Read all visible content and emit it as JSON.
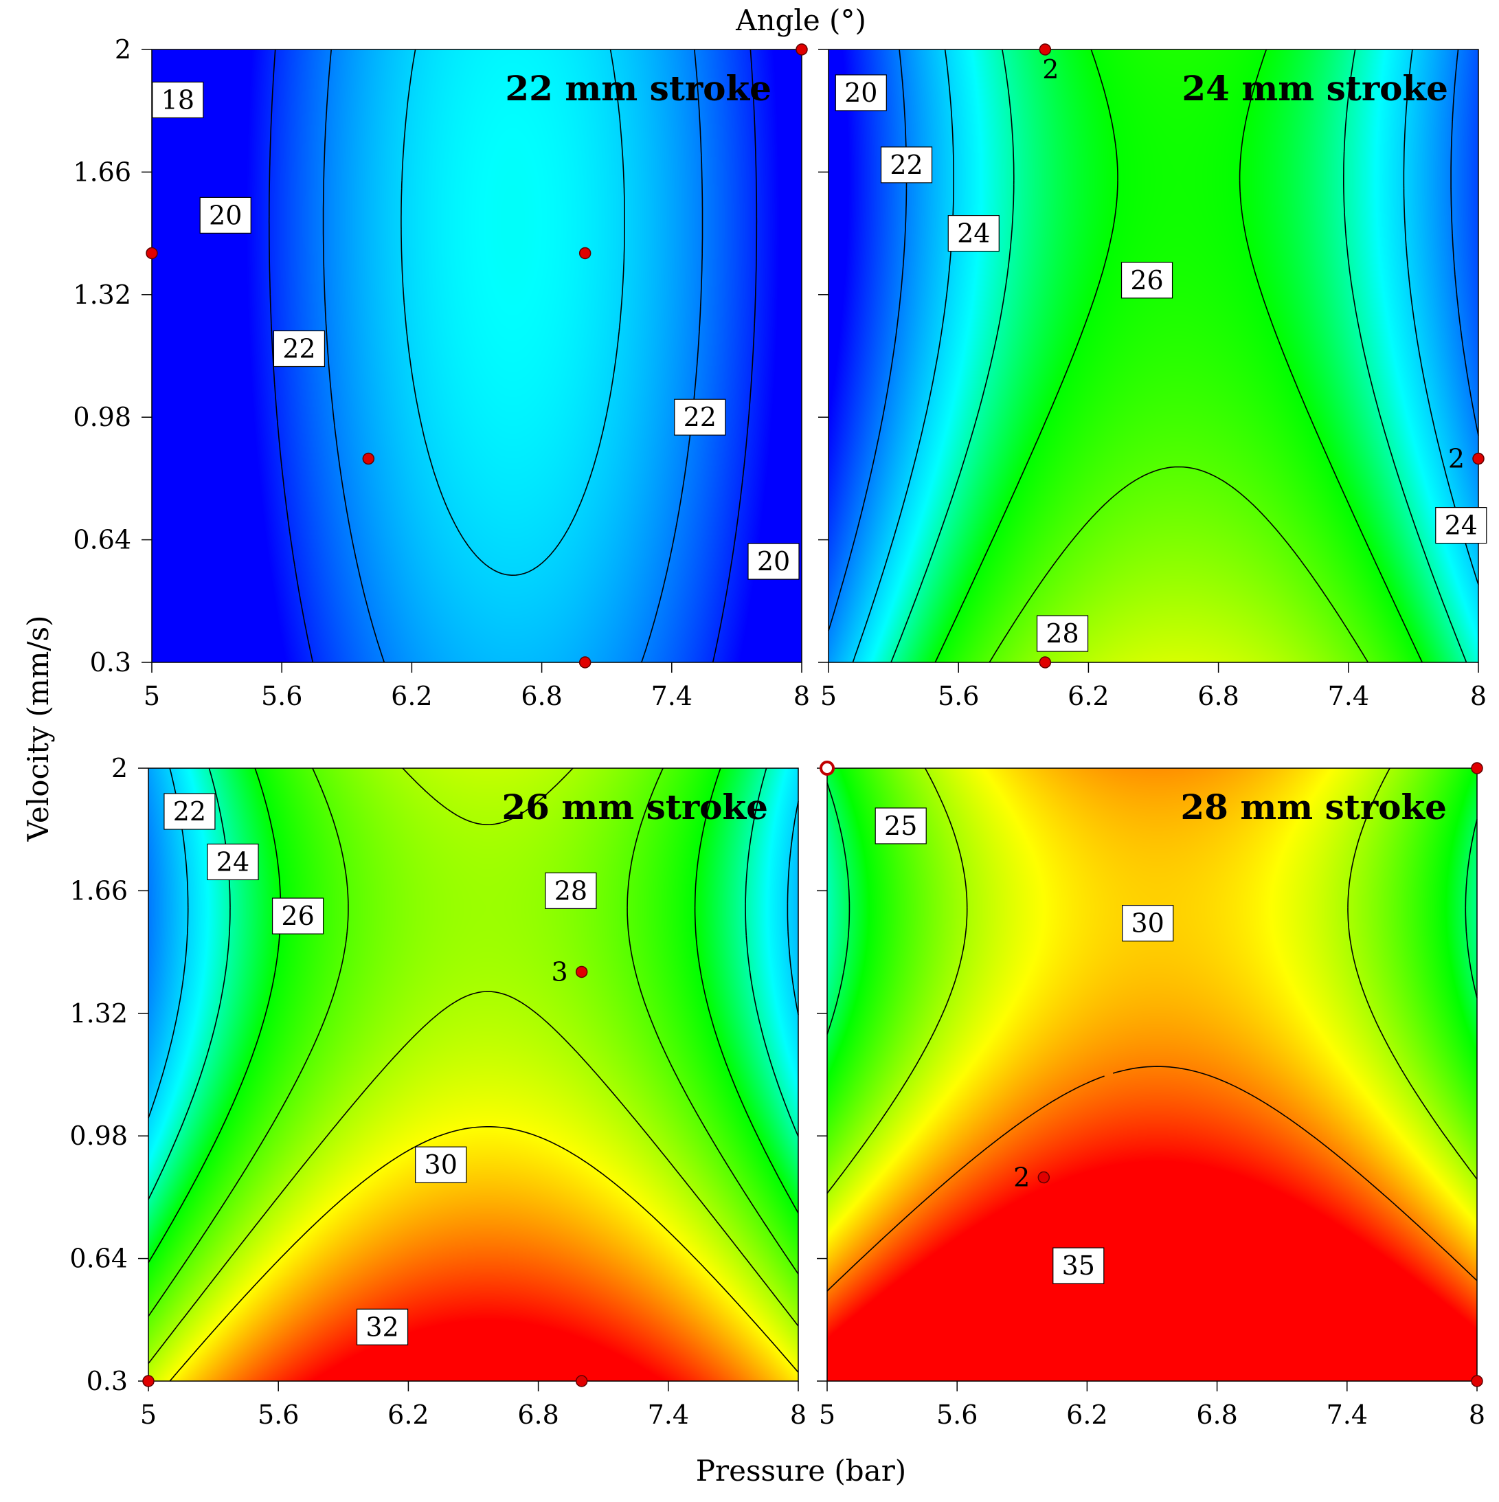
{
  "figure": {
    "top_title": "Angle (°)",
    "x_axis_title": "Pressure (bar)",
    "y_axis_title": "Velocity (mm/s)"
  },
  "chart_data": [
    {
      "type": "heatmap",
      "title": "22 mm stroke",
      "xlabel": "Pressure (bar)",
      "ylabel": "Velocity (mm/s)",
      "xlim": [
        5,
        8
      ],
      "ylim": [
        0.3,
        2
      ],
      "xticks": [
        "5",
        "5.6",
        "6.2",
        "6.8",
        "7.4",
        "8"
      ],
      "yticks": [
        "0.3",
        "0.64",
        "0.98",
        "1.32",
        "1.66",
        "2"
      ],
      "color_stops": [
        {
          "value": 17,
          "color": "#0000ff"
        },
        {
          "value": 23,
          "color": "#00ffff"
        },
        {
          "value": 26,
          "color": "#00ff00"
        },
        {
          "value": 32,
          "color": "#ffff00"
        },
        {
          "value": 38,
          "color": "#ff0000"
        }
      ],
      "coefficients": {
        "a": 22.8,
        "b": 2.0,
        "c": 0.7,
        "d": -9.0,
        "e": -0.8,
        "f": 0
      },
      "contours": [
        {
          "level": 18,
          "label": "18",
          "label_at": [
            5.12,
            1.86
          ]
        },
        {
          "level": 20,
          "label": "20",
          "label_at": [
            5.34,
            1.54
          ]
        },
        {
          "level": 22,
          "label": "22",
          "label_at": [
            5.68,
            1.17
          ]
        },
        {
          "level": 22,
          "label": "22",
          "label_at": [
            7.53,
            0.98
          ]
        },
        {
          "level": 20,
          "label": "20",
          "label_at": [
            7.87,
            0.58
          ]
        }
      ],
      "design_points": [
        {
          "x": 8,
          "y": 2,
          "label": ""
        },
        {
          "x": 5,
          "y": 1.435,
          "label": ""
        },
        {
          "x": 7,
          "y": 1.435,
          "label": ""
        },
        {
          "x": 6,
          "y": 0.865,
          "label": ""
        },
        {
          "x": 7,
          "y": 0.3,
          "label": ""
        }
      ]
    },
    {
      "type": "heatmap",
      "title": "24 mm stroke",
      "xlabel": "Pressure (bar)",
      "ylabel": "Velocity (mm/s)",
      "xlim": [
        5,
        8
      ],
      "ylim": [
        0.3,
        2
      ],
      "xticks": [
        "5",
        "5.6",
        "6.2",
        "6.8",
        "7.4",
        "8"
      ],
      "yticks": [
        "0.3",
        "0.64",
        "0.98",
        "1.32",
        "1.66",
        "2"
      ],
      "color_stops": [
        {
          "value": 17,
          "color": "#0000ff"
        },
        {
          "value": 23,
          "color": "#00ffff"
        },
        {
          "value": 26,
          "color": "#00ff00"
        },
        {
          "value": 32,
          "color": "#ffff00"
        },
        {
          "value": 38,
          "color": "#ff0000"
        }
      ],
      "coefficients": {
        "a": 26.9,
        "b": 1.4,
        "c": -2.2,
        "d": -9.0,
        "e": 1.9,
        "f": 0
      },
      "contours": [
        {
          "level": 20,
          "label": "20",
          "label_at": [
            5.15,
            1.88
          ]
        },
        {
          "level": 22,
          "label": "22",
          "label_at": [
            5.36,
            1.68
          ]
        },
        {
          "level": 24,
          "label": "24",
          "label_at": [
            5.67,
            1.49
          ]
        },
        {
          "level": 26,
          "label": "26",
          "label_at": [
            6.47,
            1.36
          ]
        },
        {
          "level": 28,
          "label": "28",
          "label_at": [
            6.08,
            0.38
          ]
        },
        {
          "level": 24,
          "label": "24",
          "label_at": [
            7.92,
            0.68
          ]
        }
      ],
      "design_points": [
        {
          "x": 6,
          "y": 2,
          "label": "2"
        },
        {
          "x": 8,
          "y": 0.865,
          "label": "2"
        },
        {
          "x": 6,
          "y": 0.3,
          "label": ""
        }
      ]
    },
    {
      "type": "heatmap",
      "title": "26 mm stroke",
      "xlabel": "Pressure (bar)",
      "ylabel": "Velocity (mm/s)",
      "xlim": [
        5,
        8
      ],
      "ylim": [
        0.3,
        2
      ],
      "xticks": [
        "5",
        "5.6",
        "6.2",
        "6.8",
        "7.4",
        "8"
      ],
      "yticks": [
        "0.3",
        "0.64",
        "0.98",
        "1.32",
        "1.66",
        "2"
      ],
      "color_stops": [
        {
          "value": 17,
          "color": "#0000ff"
        },
        {
          "value": 23,
          "color": "#00ffff"
        },
        {
          "value": 26,
          "color": "#00ff00"
        },
        {
          "value": 32,
          "color": "#ffff00"
        },
        {
          "value": 38,
          "color": "#ff0000"
        }
      ],
      "coefficients": {
        "a": 31.0,
        "b": 0.8,
        "c": -5.0,
        "d": -9.0,
        "e": 4.6,
        "f": 0
      },
      "contours": [
        {
          "level": 22,
          "label": "22",
          "label_at": [
            5.19,
            1.88
          ]
        },
        {
          "level": 24,
          "label": "24",
          "label_at": [
            5.39,
            1.74
          ]
        },
        {
          "level": 26,
          "label": "26",
          "label_at": [
            5.69,
            1.59
          ]
        },
        {
          "level": 28,
          "label": "28",
          "label_at": [
            6.95,
            1.66
          ]
        },
        {
          "level": 30,
          "label": "30",
          "label_at": [
            6.35,
            0.9
          ]
        },
        {
          "level": 32,
          "label": "32",
          "label_at": [
            6.08,
            0.45
          ]
        }
      ],
      "design_points": [
        {
          "x": 7,
          "y": 1.435,
          "label": "3"
        },
        {
          "x": 5,
          "y": 0.3,
          "label": ""
        },
        {
          "x": 7,
          "y": 0.3,
          "label": ""
        }
      ]
    },
    {
      "type": "heatmap",
      "title": "28 mm stroke",
      "xlabel": "Pressure (bar)",
      "ylabel": "Velocity (mm/s)",
      "xlim": [
        5,
        8
      ],
      "ylim": [
        0.3,
        2
      ],
      "xticks": [
        "5",
        "5.6",
        "6.2",
        "6.8",
        "7.4",
        "8"
      ],
      "yticks": [
        "0.3",
        "0.64",
        "0.98",
        "1.32",
        "1.66",
        "2"
      ],
      "color_stops": [
        {
          "value": 17,
          "color": "#0000ff"
        },
        {
          "value": 23,
          "color": "#00ffff"
        },
        {
          "value": 26,
          "color": "#00ff00"
        },
        {
          "value": 32,
          "color": "#ffff00"
        },
        {
          "value": 38,
          "color": "#ff0000"
        }
      ],
      "coefficients": {
        "a": 35.2,
        "b": 0.3,
        "c": -7.8,
        "d": -9.0,
        "e": 7.2,
        "f": 0
      },
      "contours": [
        {
          "level": 25,
          "label": "25",
          "label_at": [
            5.34,
            1.84
          ]
        },
        {
          "level": 30,
          "label": "30",
          "label_at": [
            6.48,
            1.57
          ]
        },
        {
          "level": 35,
          "label": "35",
          "label_at": [
            6.16,
            0.62
          ]
        }
      ],
      "design_points": [
        {
          "x": 5,
          "y": 2,
          "label": "",
          "hollow": true
        },
        {
          "x": 8,
          "y": 2,
          "label": ""
        },
        {
          "x": 6,
          "y": 0.865,
          "label": "2"
        },
        {
          "x": 8,
          "y": 0.3,
          "label": ""
        }
      ]
    }
  ]
}
